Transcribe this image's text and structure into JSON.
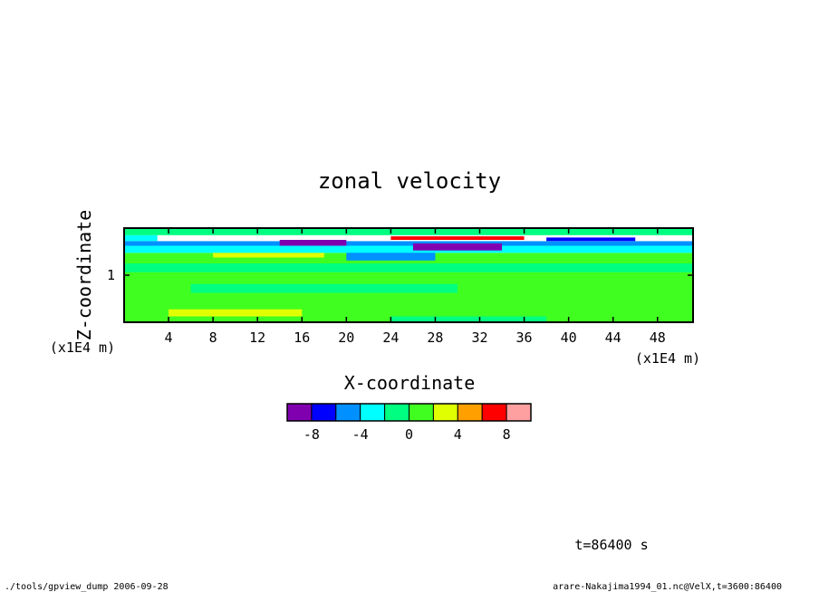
{
  "chart_data": {
    "type": "heatmap",
    "title": "zonal velocity",
    "xlabel": "X-coordinate",
    "ylabel": "Z-coordinate",
    "x_unit": "(x1E4 m)",
    "y_unit": "(x1E4 m)",
    "xlim": [
      0,
      51.2
    ],
    "ylim": [
      0.2,
      1.8
    ],
    "x_ticks": [
      "4",
      "8",
      "12",
      "16",
      "20",
      "24",
      "28",
      "32",
      "36",
      "40",
      "44",
      "48"
    ],
    "x_tick_values": [
      4,
      8,
      12,
      16,
      20,
      24,
      28,
      32,
      36,
      40,
      44,
      48
    ],
    "y_ticks": [
      "1"
    ],
    "y_tick_values": [
      1
    ],
    "colorbar": {
      "levels": [
        -10,
        -8,
        -6,
        -4,
        -2,
        0,
        2,
        4,
        6,
        8,
        10
      ],
      "colors": [
        "#8000b0",
        "#0000ff",
        "#0090ff",
        "#00ffff",
        "#00ff80",
        "#40ff20",
        "#e0ff00",
        "#ffa000",
        "#ff0000",
        "#ffa0a0"
      ],
      "tick_labels": [
        "-8",
        "-4",
        "0",
        "4",
        "8"
      ],
      "tick_values": [
        -8,
        -4,
        0,
        4,
        8
      ]
    },
    "field_bands": [
      {
        "z": [
          1.68,
          1.8
        ],
        "x": [
          0,
          51.2
        ],
        "color": "#00ff80"
      },
      {
        "z": [
          1.58,
          1.68
        ],
        "x": [
          3,
          51.2
        ],
        "color": "#ffffff"
      },
      {
        "z": [
          1.58,
          1.68
        ],
        "x": [
          0,
          3
        ],
        "color": "#00ffff"
      },
      {
        "z": [
          1.5,
          1.58
        ],
        "x": [
          0,
          51.2
        ],
        "color": "#0090ff"
      },
      {
        "z": [
          1.5,
          1.6
        ],
        "x": [
          14,
          20
        ],
        "color": "#8000b0"
      },
      {
        "z": [
          1.42,
          1.54
        ],
        "x": [
          26,
          34
        ],
        "color": "#8000b0"
      },
      {
        "z": [
          1.6,
          1.66
        ],
        "x": [
          24,
          36
        ],
        "color": "#ff0000"
      },
      {
        "z": [
          1.58,
          1.64
        ],
        "x": [
          38,
          46
        ],
        "color": "#0000ff"
      },
      {
        "z": [
          1.38,
          1.5
        ],
        "x": [
          0,
          51.2
        ],
        "color": "#00ffff"
      },
      {
        "z": [
          1.3,
          1.4
        ],
        "x": [
          8,
          18
        ],
        "color": "#e0ff00"
      },
      {
        "z": [
          1.25,
          1.4
        ],
        "x": [
          20,
          28
        ],
        "color": "#0090ff"
      },
      {
        "z": [
          0.2,
          1.38
        ],
        "x": [
          0,
          51.2
        ],
        "color": "#40ff20"
      },
      {
        "z": [
          1.05,
          1.2
        ],
        "x": [
          0,
          51.2
        ],
        "color": "#00ff80"
      },
      {
        "z": [
          0.7,
          0.85
        ],
        "x": [
          6,
          30
        ],
        "color": "#00ff80"
      },
      {
        "z": [
          0.3,
          0.42
        ],
        "x": [
          4,
          16
        ],
        "color": "#e0ff00"
      },
      {
        "z": [
          0.2,
          0.3
        ],
        "x": [
          24,
          38
        ],
        "color": "#00ff80"
      }
    ]
  },
  "annotations": {
    "time": "t=86400 s",
    "footer_left": "./tools/gpview_dump  2006-09-28",
    "footer_right": "arare-Nakajima1994_01.nc@VelX,t=3600:86400"
  }
}
